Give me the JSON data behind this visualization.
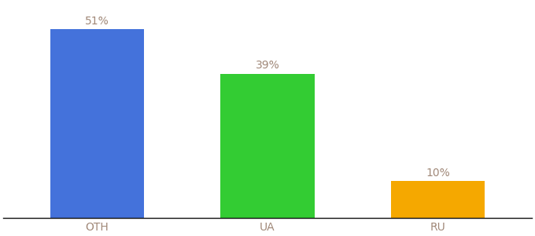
{
  "categories": [
    "OTH",
    "UA",
    "RU"
  ],
  "values": [
    51,
    39,
    10
  ],
  "bar_colors": [
    "#4472db",
    "#33cc33",
    "#f5a800"
  ],
  "value_labels": [
    "51%",
    "39%",
    "10%"
  ],
  "background_color": "#ffffff",
  "label_color": "#a08878",
  "label_fontsize": 10,
  "tick_fontsize": 10,
  "tick_color": "#a08878",
  "ylim": [
    0,
    58
  ],
  "bar_width": 0.55,
  "spine_color": "#111111",
  "bar_positions": [
    0,
    1,
    2
  ],
  "xlim": [
    -0.55,
    2.55
  ]
}
